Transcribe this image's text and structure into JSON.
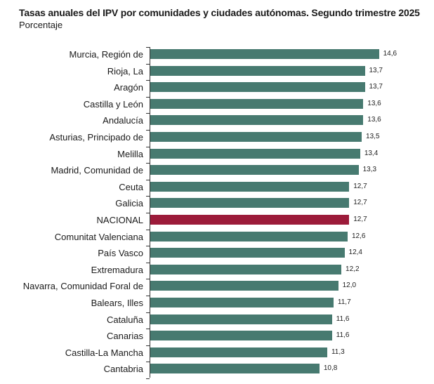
{
  "header": {
    "title": "Tasas anuales del IPV por comunidades y ciudades autónomas. Segundo trimestre 2025",
    "subtitle": "Porcentaje"
  },
  "colors": {
    "bar": "#477a70",
    "highlight": "#9c1b3a"
  },
  "chart_data": {
    "type": "bar",
    "orientation": "horizontal",
    "title": "Tasas anuales del IPV por comunidades y ciudades autónomas. Segundo trimestre 2025",
    "subtitle": "Porcentaje",
    "xlabel": "",
    "ylabel": "",
    "xlim": [
      0,
      15
    ],
    "grid": false,
    "legend": null,
    "categories": [
      "Murcia, Región de",
      "Rioja, La",
      "Aragón",
      "Castilla y León",
      "Andalucía",
      "Asturias, Principado de",
      "Melilla",
      "Madrid, Comunidad de",
      "Ceuta",
      "Galicia",
      "NACIONAL",
      "Comunitat Valenciana",
      "País Vasco",
      "Extremadura",
      "Navarra, Comunidad Foral de",
      "Balears, Illes",
      "Cataluña",
      "Canarias",
      "Castilla-La Mancha",
      "Cantabria"
    ],
    "values": [
      14.6,
      13.7,
      13.7,
      13.6,
      13.6,
      13.5,
      13.4,
      13.3,
      12.7,
      12.7,
      12.7,
      12.6,
      12.4,
      12.2,
      12.0,
      11.7,
      11.6,
      11.6,
      11.3,
      10.8
    ],
    "value_labels": [
      "14,6",
      "13,7",
      "13,7",
      "13,6",
      "13,6",
      "13,5",
      "13,4",
      "13,3",
      "12,7",
      "12,7",
      "12,7",
      "12,6",
      "12,4",
      "12,2",
      "12,0",
      "11,7",
      "11,6",
      "11,6",
      "11,3",
      "10,8"
    ],
    "highlight": "NACIONAL"
  }
}
